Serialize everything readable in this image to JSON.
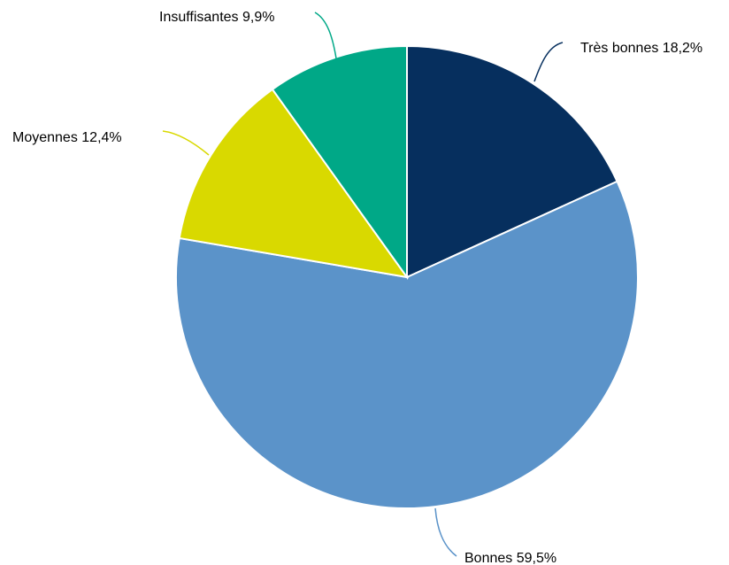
{
  "chart_data": {
    "type": "pie",
    "categories": [
      "Très bonnes",
      "Bonnes",
      "Moyennes",
      "Insuffisantes"
    ],
    "values": [
      18.2,
      59.5,
      12.4,
      9.9
    ],
    "unit": "%",
    "colors": [
      "#062f5e",
      "#5b93c9",
      "#d9d900",
      "#00a887"
    ],
    "labels": [
      "Très bonnes 18,2%",
      "Bonnes 59,5%",
      "Moyennes 12,4%",
      "Insuffisantes 9,9%"
    ],
    "start": "12 o'clock",
    "direction": "clockwise",
    "legend": "none"
  }
}
